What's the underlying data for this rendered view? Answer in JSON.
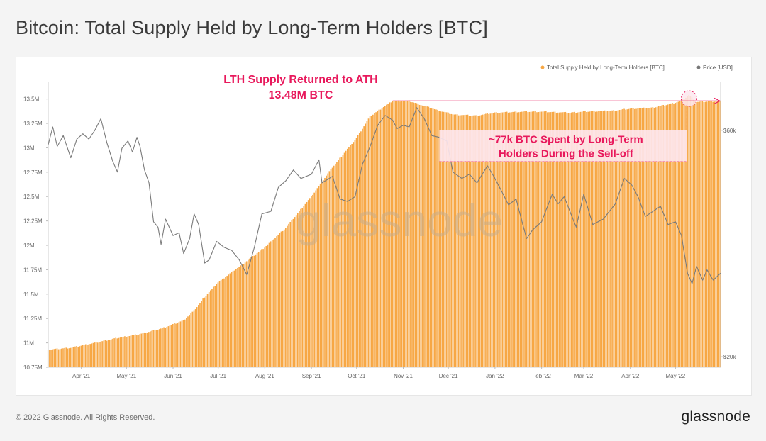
{
  "title": "Bitcoin: Total Supply Held by Long-Term Holders [BTC]",
  "footer": {
    "copyright": "© 2022 Glassnode. All Rights Reserved.",
    "logo": "glassnode"
  },
  "watermark": "glassnode",
  "colors": {
    "supply": "#f7a744",
    "price": "#888888",
    "annotation": "#e8195c",
    "annotation_fill": "#fde7ee"
  },
  "chart_data": {
    "type": "bar",
    "title": "Bitcoin: Total Supply Held by Long-Term Holders [BTC]",
    "legend": {
      "placement": "top-right",
      "entries": [
        "Total Supply Held by Long-Term Holders [BTC]",
        "Price [USD]"
      ]
    },
    "y_left": {
      "ylim": [
        10750000,
        13650000
      ],
      "ticks": [
        10750000,
        11000000,
        11250000,
        11500000,
        11750000,
        12000000,
        12250000,
        12500000,
        12750000,
        13000000,
        13250000,
        13500000
      ],
      "tick_labels": [
        "10.75M",
        "11M",
        "11.25M",
        "11.5M",
        "11.75M",
        "12M",
        "12.25M",
        "12.5M",
        "12.75M",
        "13M",
        "13.25M",
        "13.5M"
      ]
    },
    "y_right": {
      "scale": "log",
      "ylim": [
        19000,
        75000
      ],
      "ticks": [
        20000,
        60000
      ],
      "tick_labels": [
        "$20k",
        "$60k"
      ]
    },
    "x_axis": {
      "range": [
        "2021-03-10",
        "2022-05-31"
      ],
      "ticks": [
        "2021-04-01",
        "2021-05-01",
        "2021-06-01",
        "2021-07-01",
        "2021-08-01",
        "2021-09-01",
        "2021-10-01",
        "2021-11-01",
        "2021-12-01",
        "2022-01-01",
        "2022-02-01",
        "2022-03-01",
        "2022-04-01",
        "2022-05-01"
      ],
      "tick_labels": [
        "Apr '21",
        "May '21",
        "Jun '21",
        "Jul '21",
        "Aug '21",
        "Sep '21",
        "Oct '21",
        "Nov '21",
        "Dec '21",
        "Jan '22",
        "Feb '22",
        "Mar '22",
        "Apr '22",
        "May '22"
      ]
    },
    "series": [
      {
        "name": "Total Supply Held by Long-Term Holders [BTC]",
        "kind": "bar",
        "points": [
          [
            "2021-03-10",
            10930000
          ],
          [
            "2021-03-25",
            10950000
          ],
          [
            "2021-04-10",
            11000000
          ],
          [
            "2021-04-25",
            11050000
          ],
          [
            "2021-05-10",
            11090000
          ],
          [
            "2021-05-25",
            11150000
          ],
          [
            "2021-06-08",
            11230000
          ],
          [
            "2021-06-15",
            11330000
          ],
          [
            "2021-06-22",
            11470000
          ],
          [
            "2021-07-01",
            11620000
          ],
          [
            "2021-07-15",
            11780000
          ],
          [
            "2021-08-01",
            11980000
          ],
          [
            "2021-08-15",
            12180000
          ],
          [
            "2021-09-01",
            12500000
          ],
          [
            "2021-09-15",
            12800000
          ],
          [
            "2021-10-01",
            13100000
          ],
          [
            "2021-10-10",
            13320000
          ],
          [
            "2021-10-20",
            13430000
          ],
          [
            "2021-10-25",
            13480000
          ],
          [
            "2021-11-05",
            13480000
          ],
          [
            "2021-11-15",
            13430000
          ],
          [
            "2021-11-25",
            13380000
          ],
          [
            "2021-12-05",
            13340000
          ],
          [
            "2021-12-20",
            13330000
          ],
          [
            "2022-01-01",
            13360000
          ],
          [
            "2022-01-20",
            13370000
          ],
          [
            "2022-02-01",
            13370000
          ],
          [
            "2022-02-20",
            13360000
          ],
          [
            "2022-03-01",
            13370000
          ],
          [
            "2022-03-20",
            13380000
          ],
          [
            "2022-04-01",
            13400000
          ],
          [
            "2022-04-15",
            13410000
          ],
          [
            "2022-04-25",
            13440000
          ],
          [
            "2022-05-05",
            13480000
          ],
          [
            "2022-05-10",
            13540000
          ],
          [
            "2022-05-15",
            13470000
          ],
          [
            "2022-05-31",
            13480000
          ]
        ]
      },
      {
        "name": "Price [USD]",
        "kind": "line",
        "axis": "right",
        "points": [
          [
            "2021-03-10",
            56000
          ],
          [
            "2021-03-13",
            61000
          ],
          [
            "2021-03-16",
            55500
          ],
          [
            "2021-03-20",
            58500
          ],
          [
            "2021-03-25",
            52500
          ],
          [
            "2021-03-29",
            57500
          ],
          [
            "2021-04-02",
            59000
          ],
          [
            "2021-04-06",
            57500
          ],
          [
            "2021-04-10",
            60000
          ],
          [
            "2021-04-14",
            63500
          ],
          [
            "2021-04-18",
            56500
          ],
          [
            "2021-04-22",
            51500
          ],
          [
            "2021-04-25",
            49000
          ],
          [
            "2021-04-28",
            55000
          ],
          [
            "2021-05-02",
            57000
          ],
          [
            "2021-05-05",
            54000
          ],
          [
            "2021-05-08",
            58000
          ],
          [
            "2021-05-10",
            55500
          ],
          [
            "2021-05-13",
            49500
          ],
          [
            "2021-05-16",
            46500
          ],
          [
            "2021-05-19",
            38500
          ],
          [
            "2021-05-22",
            37500
          ],
          [
            "2021-05-24",
            34500
          ],
          [
            "2021-05-27",
            39000
          ],
          [
            "2021-06-01",
            36000
          ],
          [
            "2021-06-05",
            36500
          ],
          [
            "2021-06-08",
            33000
          ],
          [
            "2021-06-12",
            35500
          ],
          [
            "2021-06-15",
            40000
          ],
          [
            "2021-06-18",
            38000
          ],
          [
            "2021-06-22",
            31500
          ],
          [
            "2021-06-25",
            32000
          ],
          [
            "2021-06-30",
            35000
          ],
          [
            "2021-07-05",
            34000
          ],
          [
            "2021-07-10",
            33500
          ],
          [
            "2021-07-15",
            32000
          ],
          [
            "2021-07-20",
            29800
          ],
          [
            "2021-07-25",
            34000
          ],
          [
            "2021-07-30",
            40000
          ],
          [
            "2021-08-05",
            40500
          ],
          [
            "2021-08-10",
            45500
          ],
          [
            "2021-08-15",
            47000
          ],
          [
            "2021-08-20",
            49500
          ],
          [
            "2021-08-25",
            47500
          ],
          [
            "2021-09-01",
            48500
          ],
          [
            "2021-09-06",
            52000
          ],
          [
            "2021-09-08",
            46500
          ],
          [
            "2021-09-15",
            48000
          ],
          [
            "2021-09-20",
            43000
          ],
          [
            "2021-09-25",
            42500
          ],
          [
            "2021-09-30",
            43500
          ],
          [
            "2021-10-05",
            51000
          ],
          [
            "2021-10-10",
            55500
          ],
          [
            "2021-10-15",
            61500
          ],
          [
            "2021-10-20",
            64500
          ],
          [
            "2021-10-25",
            63000
          ],
          [
            "2021-10-28",
            60500
          ],
          [
            "2021-11-01",
            61500
          ],
          [
            "2021-11-05",
            61000
          ],
          [
            "2021-11-10",
            67000
          ],
          [
            "2021-11-15",
            63500
          ],
          [
            "2021-11-20",
            58500
          ],
          [
            "2021-11-25",
            58000
          ],
          [
            "2021-11-30",
            57000
          ],
          [
            "2021-12-04",
            49000
          ],
          [
            "2021-12-10",
            47500
          ],
          [
            "2021-12-15",
            48500
          ],
          [
            "2021-12-20",
            46500
          ],
          [
            "2021-12-27",
            50500
          ],
          [
            "2022-01-01",
            47500
          ],
          [
            "2022-01-10",
            41800
          ],
          [
            "2022-01-15",
            43000
          ],
          [
            "2022-01-22",
            35500
          ],
          [
            "2022-01-26",
            37000
          ],
          [
            "2022-02-01",
            38500
          ],
          [
            "2022-02-08",
            44000
          ],
          [
            "2022-02-12",
            42000
          ],
          [
            "2022-02-16",
            43500
          ],
          [
            "2022-02-24",
            37500
          ],
          [
            "2022-03-01",
            44000
          ],
          [
            "2022-03-07",
            38000
          ],
          [
            "2022-03-14",
            39000
          ],
          [
            "2022-03-22",
            42000
          ],
          [
            "2022-03-28",
            47500
          ],
          [
            "2022-04-02",
            46000
          ],
          [
            "2022-04-06",
            43500
          ],
          [
            "2022-04-11",
            39500
          ],
          [
            "2022-04-16",
            40500
          ],
          [
            "2022-04-21",
            41500
          ],
          [
            "2022-04-26",
            38000
          ],
          [
            "2022-05-01",
            38500
          ],
          [
            "2022-05-05",
            36000
          ],
          [
            "2022-05-09",
            30000
          ],
          [
            "2022-05-12",
            28500
          ],
          [
            "2022-05-15",
            31000
          ],
          [
            "2022-05-19",
            29000
          ],
          [
            "2022-05-22",
            30500
          ],
          [
            "2022-05-26",
            29000
          ],
          [
            "2022-05-31",
            30000
          ]
        ]
      }
    ],
    "annotations": [
      {
        "id": "ath",
        "lines": [
          "LTH Supply Returned to ATH",
          "13.48M BTC"
        ]
      },
      {
        "id": "spent",
        "lines": [
          "~77k BTC Spent by Long-Term",
          "Holders During the Sell-off"
        ]
      }
    ]
  }
}
